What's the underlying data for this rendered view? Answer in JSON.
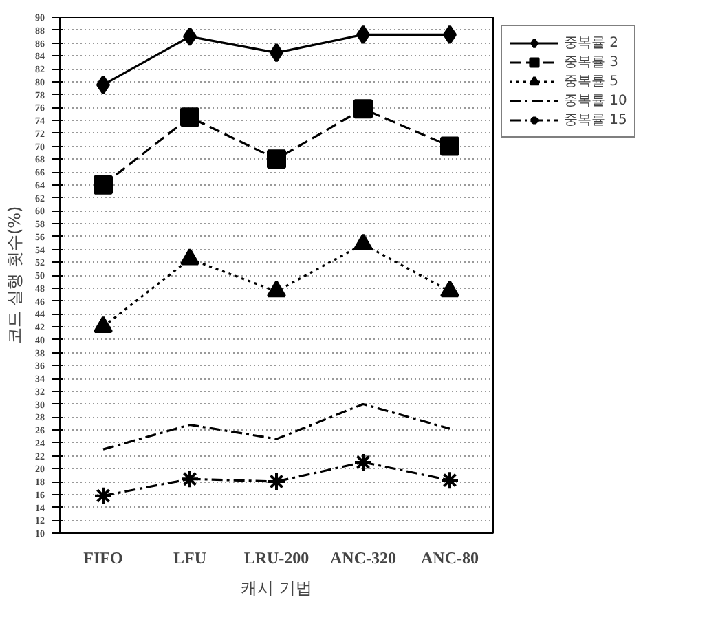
{
  "chart_data": {
    "type": "line",
    "xlabel": "캐시 기법",
    "ylabel": "코드 실행 횟수(%)",
    "categories": [
      "FIFO",
      "LFU",
      "LRU-200",
      "ANC-320",
      "ANC-80"
    ],
    "series": [
      {
        "name": "중복률 2",
        "color": "#000000",
        "marker": "diamond",
        "line_style": "solid",
        "values": [
          79.5,
          87,
          84.5,
          87.3,
          87.3
        ]
      },
      {
        "name": "중복률 3",
        "color": "#000000",
        "marker": "square",
        "line_style": "dashed",
        "values": [
          64,
          74.5,
          68,
          75.8,
          70
        ]
      },
      {
        "name": "중복률 5",
        "color": "#000000",
        "marker": "triangle",
        "line_style": "dotted",
        "values": [
          42,
          52.5,
          47.5,
          54.8,
          47.5
        ]
      },
      {
        "name": "중복률 10",
        "color": "#000000",
        "marker": "none",
        "line_style": "dashdot",
        "values": [
          23,
          26.8,
          24.6,
          30,
          26.2
        ]
      },
      {
        "name": "중복률 15",
        "color": "#000000",
        "marker": "cross",
        "line_style": "dashdot",
        "values": [
          15.8,
          18.4,
          18,
          21,
          18.2
        ]
      }
    ],
    "ylim": [
      10,
      90
    ],
    "yticks": [
      10,
      12,
      14,
      16,
      18,
      20,
      22,
      24,
      26,
      28,
      30,
      32,
      34,
      36,
      38,
      40,
      42,
      44,
      46,
      48,
      50,
      52,
      54,
      56,
      58,
      60,
      62,
      64,
      66,
      68,
      70,
      72,
      74,
      76,
      78,
      80,
      82,
      84,
      86,
      88,
      90
    ],
    "grid": "y",
    "legend": "top right"
  }
}
